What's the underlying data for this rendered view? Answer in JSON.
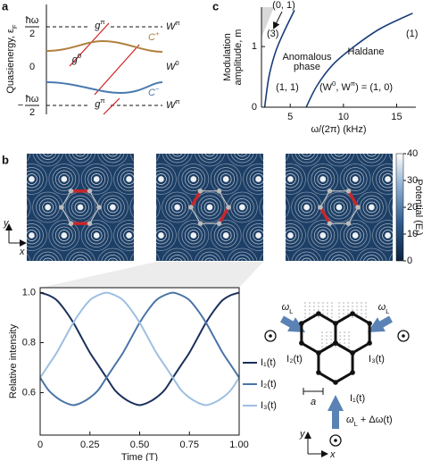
{
  "panel_labels": [
    "a",
    "b",
    "c"
  ],
  "quasienergy": {
    "ylabel": {
      "text": "Quasienergy, ε",
      "sub": "F"
    },
    "top_level": {
      "num": "ħω",
      "den": "2"
    },
    "zero_label": "0",
    "bottom_level": {
      "sign": "−",
      "num": "ħω",
      "den": "2"
    },
    "gap_labels": [
      {
        "base": "g",
        "sup": "π"
      },
      {
        "base": "g",
        "sup": "0"
      },
      {
        "base": "g",
        "sup": "π"
      }
    ],
    "winding_labels": [
      {
        "base": "W",
        "sup": "π"
      },
      {
        "base": "W",
        "sup": "0"
      },
      {
        "base": "W",
        "sup": "π"
      }
    ],
    "band_labels": [
      {
        "base": "C",
        "sup": "+"
      },
      {
        "base": "C",
        "sup": "−"
      }
    ],
    "band_colors": [
      "#b08040",
      "#4a7ab0"
    ]
  },
  "chart_data": [
    {
      "type": "line",
      "xlabel": "ω/(2π) (kHz)",
      "ylabel": [
        "Modulation",
        "amplitude, m"
      ],
      "xlim": [
        2.3,
        16.8
      ],
      "ylim": [
        0,
        1.65
      ],
      "xticks": [
        5,
        10,
        15
      ],
      "yticks": [
        0,
        1
      ],
      "series": [
        {
          "color": "#1a3d7a",
          "x": [
            2.6,
            3.0,
            3.6,
            4.3,
            5.4
          ],
          "values": [
            0,
            0.5,
            0.9,
            1.2,
            1.6
          ]
        },
        {
          "color": "#1a3d7a",
          "x": [
            6.5,
            7.5,
            9,
            11,
            13.5,
            16.5
          ],
          "values": [
            0,
            0.35,
            0.7,
            1.0,
            1.3,
            1.55
          ]
        }
      ],
      "annotations": [
        "(0, 1)",
        "(3)",
        "(1)",
        "Anomalous",
        "phase",
        "Haldane",
        "(1, 1)"
      ],
      "phase_label_parts": [
        "(W",
        "0",
        ", W",
        "π",
        ") = (1, 0)"
      ]
    },
    {
      "type": "line",
      "xlabel": "Time (T)",
      "ylabel": "Relative intensity",
      "xlim": [
        0,
        1
      ],
      "ylim": [
        0.43,
        1.02
      ],
      "xticks": [
        0,
        0.25,
        {
          "value": 0.5,
          "label": "0.50"
        },
        0.75,
        {
          "value": 1,
          "label": "1.00"
        }
      ],
      "yticks": [
        0.6,
        0.8,
        {
          "value": 1,
          "label": "1.0"
        }
      ],
      "x": [
        0,
        0.0417,
        0.0833,
        0.125,
        0.1667,
        0.2083,
        0.25,
        0.2917,
        0.3333,
        0.375,
        0.4167,
        0.4583,
        0.5,
        0.5417,
        0.5833,
        0.625,
        0.6667,
        0.7083,
        0.75,
        0.7917,
        0.8333,
        0.875,
        0.9167,
        0.9583,
        1
      ],
      "series": [
        {
          "name": "I₁(t)",
          "color": "#1a2f5a",
          "values": [
            1.0,
            0.99,
            0.97,
            0.93,
            0.88,
            0.82,
            0.76,
            0.71,
            0.66,
            0.61,
            0.58,
            0.56,
            0.55,
            0.56,
            0.58,
            0.61,
            0.66,
            0.71,
            0.76,
            0.82,
            0.88,
            0.93,
            0.97,
            0.99,
            1.0
          ]
        },
        {
          "name": "I₂(t)",
          "color": "#4a74a8",
          "values": [
            0.66,
            0.61,
            0.58,
            0.56,
            0.55,
            0.56,
            0.58,
            0.61,
            0.66,
            0.71,
            0.76,
            0.82,
            0.88,
            0.93,
            0.97,
            0.99,
            1.0,
            0.99,
            0.97,
            0.93,
            0.88,
            0.82,
            0.76,
            0.71,
            0.66
          ]
        },
        {
          "name": "I₃(t)",
          "color": "#9dbfe0",
          "values": [
            0.66,
            0.71,
            0.76,
            0.82,
            0.88,
            0.93,
            0.97,
            0.99,
            1.0,
            0.99,
            0.97,
            0.93,
            0.88,
            0.82,
            0.76,
            0.71,
            0.66,
            0.61,
            0.58,
            0.56,
            0.55,
            0.56,
            0.58,
            0.61,
            0.66
          ]
        }
      ]
    }
  ],
  "potential_maps": {
    "colorbar_label": "Potential (Eᵣ)",
    "colorbar_lim": [
      0,
      40
    ],
    "colorbar_ticks": [
      0,
      10,
      20,
      30,
      40
    ],
    "axis_labels": {
      "y": "y",
      "x": "x"
    }
  },
  "lattice": {
    "beam_left": {
      "base": "ω",
      "sub": "L"
    },
    "beam_right": {
      "base": "ω",
      "sub": "L"
    },
    "beam_bottom": {
      "base": "ω",
      "sub": "L",
      "rest": " + Δω(t)"
    },
    "site_labels": [
      "I₂(t)",
      "I₃(t)",
      "I₁(t)"
    ],
    "spacing": "a",
    "axis_labels": {
      "y": "y",
      "x": "x"
    }
  }
}
